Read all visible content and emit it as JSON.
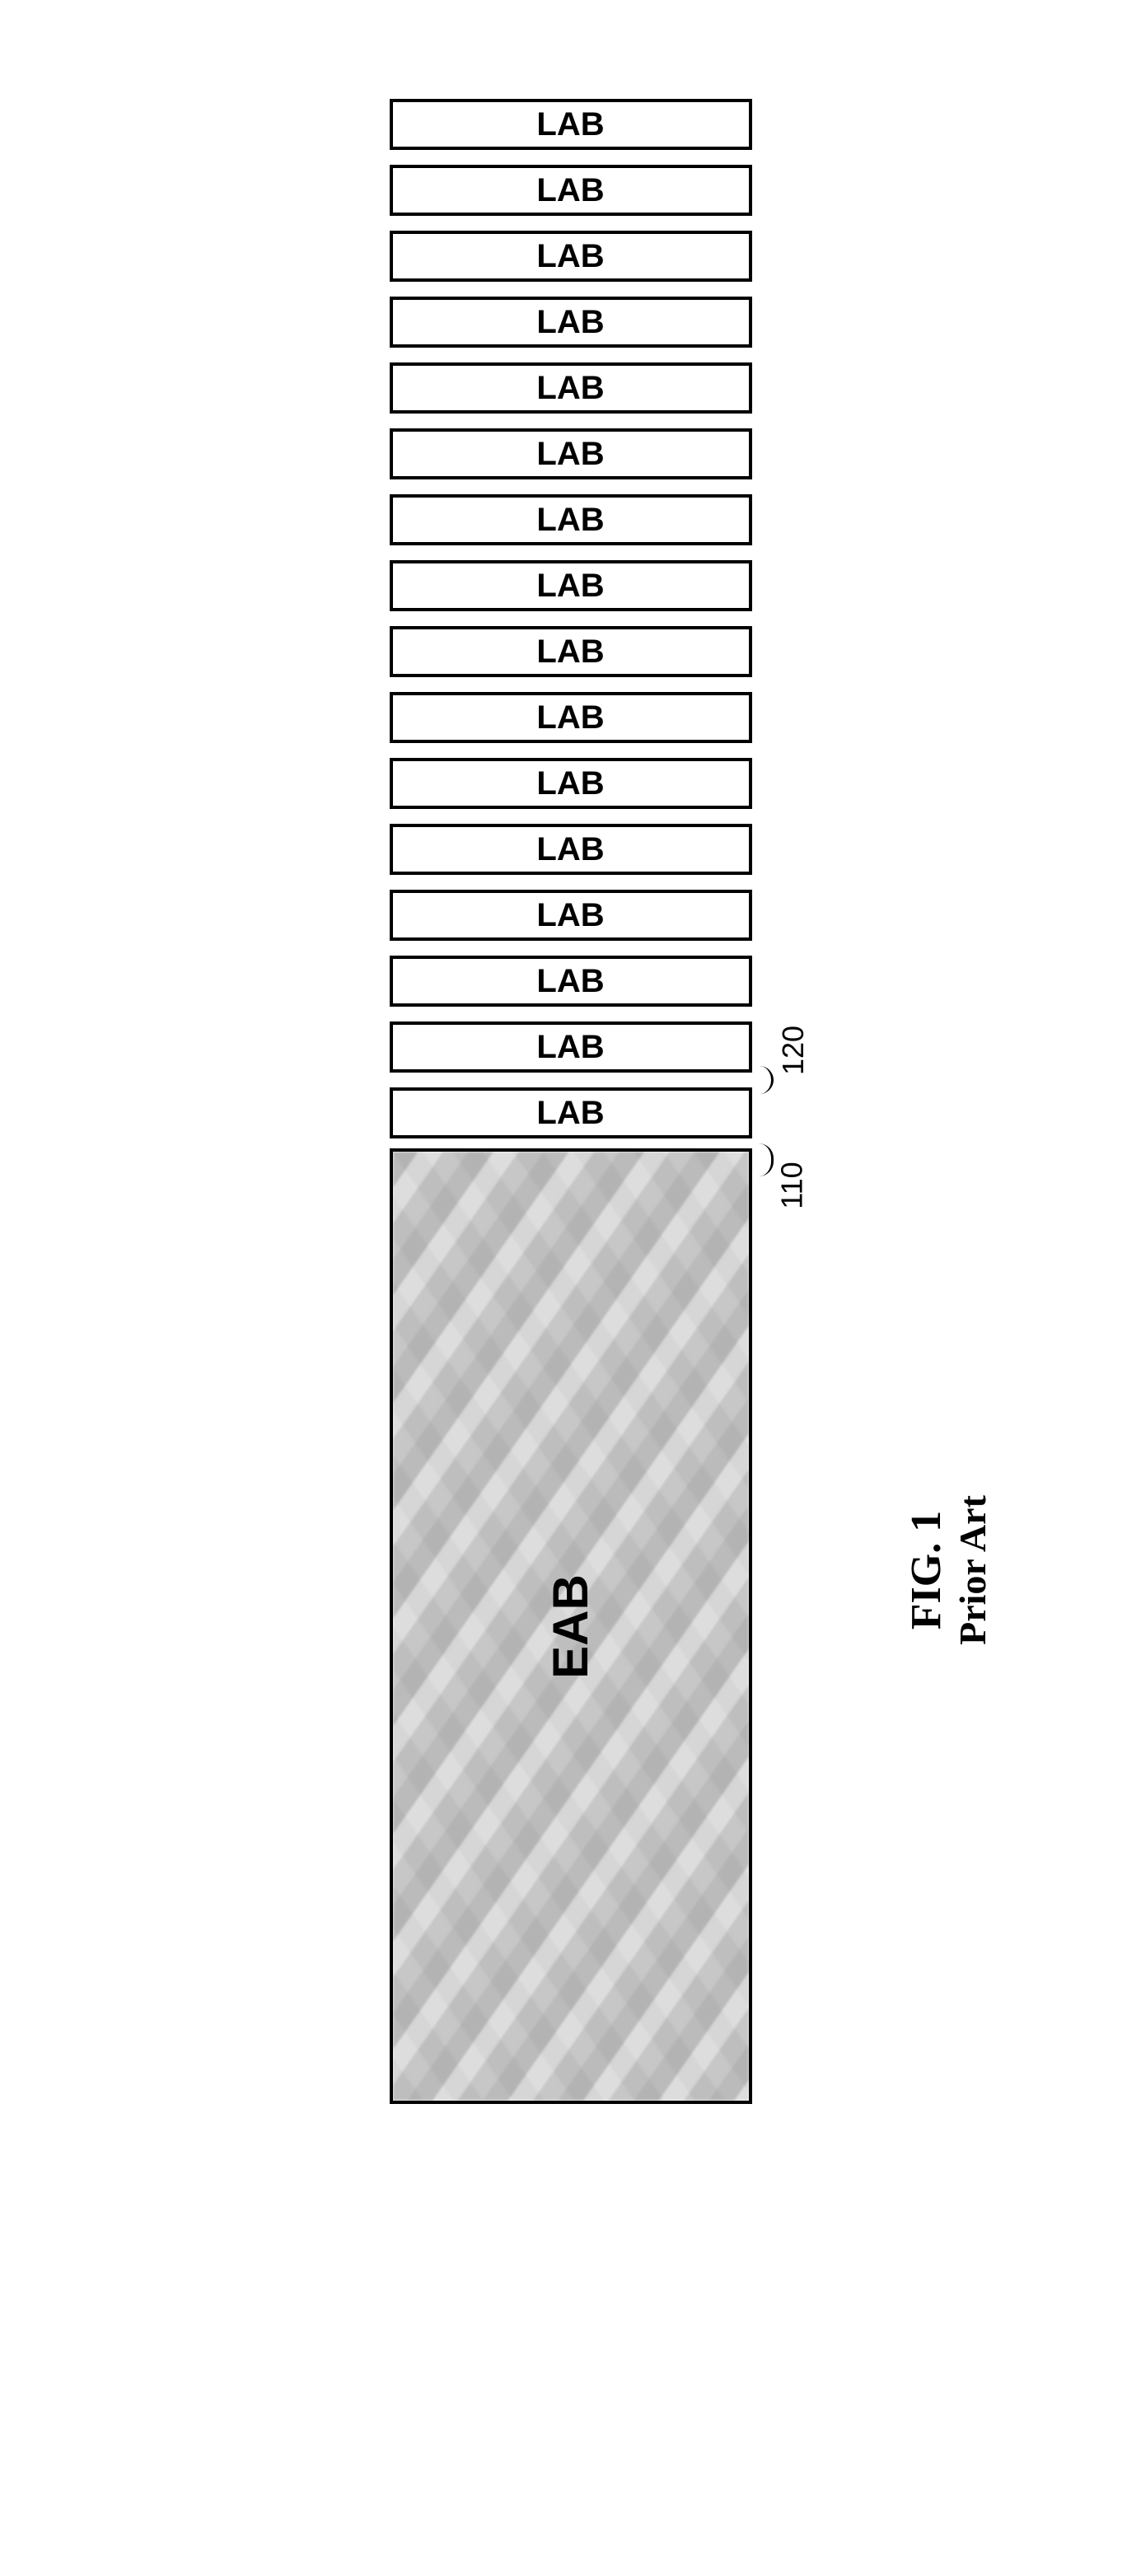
{
  "diagram": {
    "lab_count": 16,
    "lab_label": "LAB",
    "lab_width": 440,
    "lab_height": 62,
    "lab_gap": 18,
    "lab_fontsize": 40,
    "eab_label": "EAB",
    "eab_width": 440,
    "eab_height": 1160,
    "eab_fontsize": 60,
    "eab_top_gap": 12,
    "border_color": "#000000",
    "background_color": "#ffffff"
  },
  "refs": {
    "ref110": {
      "label": "110",
      "fontsize": 36
    },
    "ref120": {
      "label": "120",
      "fontsize": 36
    }
  },
  "caption": {
    "fig_label": "FIG. 1",
    "fig_fontsize": 52,
    "sub_label": "Prior Art",
    "sub_fontsize": 46
  }
}
